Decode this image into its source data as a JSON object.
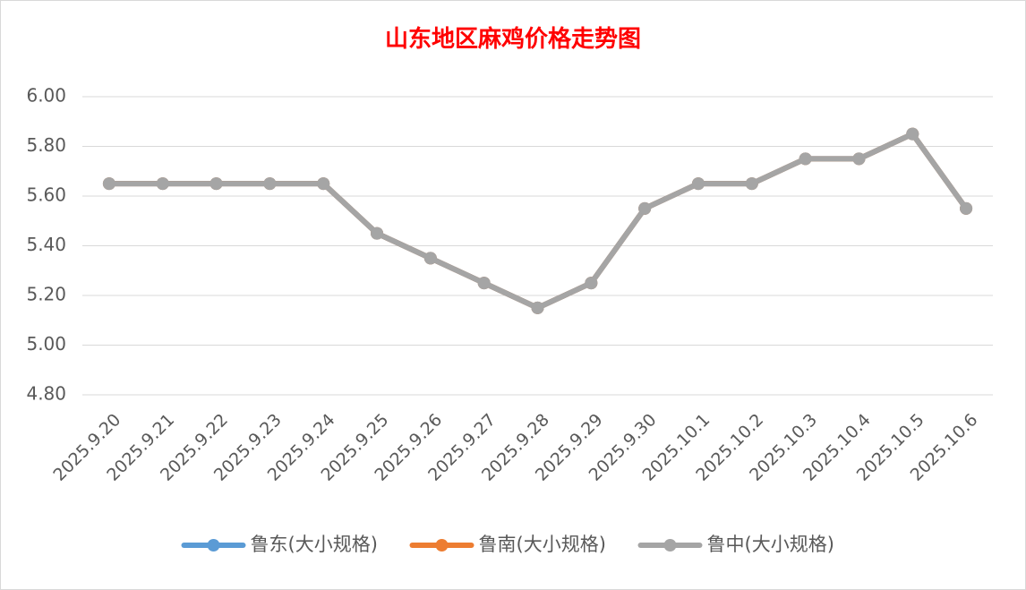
{
  "chart_data": {
    "type": "line",
    "title": "山东地区麻鸡价格走势图",
    "categories": [
      "2025.9.20",
      "2025.9.21",
      "2025.9.22",
      "2025.9.23",
      "2025.9.24",
      "2025.9.25",
      "2025.9.26",
      "2025.9.27",
      "2025.9.28",
      "2025.9.29",
      "2025.9.30",
      "2025.10.1",
      "2025.10.2",
      "2025.10.3",
      "2025.10.4",
      "2025.10.5",
      "2025.10.6"
    ],
    "series": [
      {
        "name": "鲁东(大小规格)",
        "color": "#5b9bd5",
        "values": [
          5.65,
          5.65,
          5.65,
          5.65,
          5.65,
          5.45,
          5.35,
          5.25,
          5.15,
          5.25,
          5.55,
          5.65,
          5.65,
          5.75,
          5.75,
          5.85,
          5.55
        ]
      },
      {
        "name": "鲁南(大小规格)",
        "color": "#ed7d31",
        "values": [
          5.65,
          5.65,
          5.65,
          5.65,
          5.65,
          5.45,
          5.35,
          5.25,
          5.15,
          5.25,
          5.55,
          5.65,
          5.65,
          5.75,
          5.75,
          5.85,
          5.55
        ]
      },
      {
        "name": "鲁中(大小规格)",
        "color": "#a5a5a5",
        "values": [
          5.65,
          5.65,
          5.65,
          5.65,
          5.65,
          5.45,
          5.35,
          5.25,
          5.15,
          5.25,
          5.55,
          5.65,
          5.65,
          5.75,
          5.75,
          5.85,
          5.55
        ]
      }
    ],
    "ylim": [
      4.8,
      6.0
    ],
    "yticks": [
      {
        "value": 4.8,
        "label": "4.80"
      },
      {
        "value": 5.0,
        "label": "5.00"
      },
      {
        "value": 5.2,
        "label": "5.20"
      },
      {
        "value": 5.4,
        "label": "5.40"
      },
      {
        "value": 5.6,
        "label": "5.60"
      },
      {
        "value": 5.8,
        "label": "5.80"
      },
      {
        "value": 6.0,
        "label": "6.00"
      }
    ],
    "grid": true,
    "legend": "bottom"
  }
}
